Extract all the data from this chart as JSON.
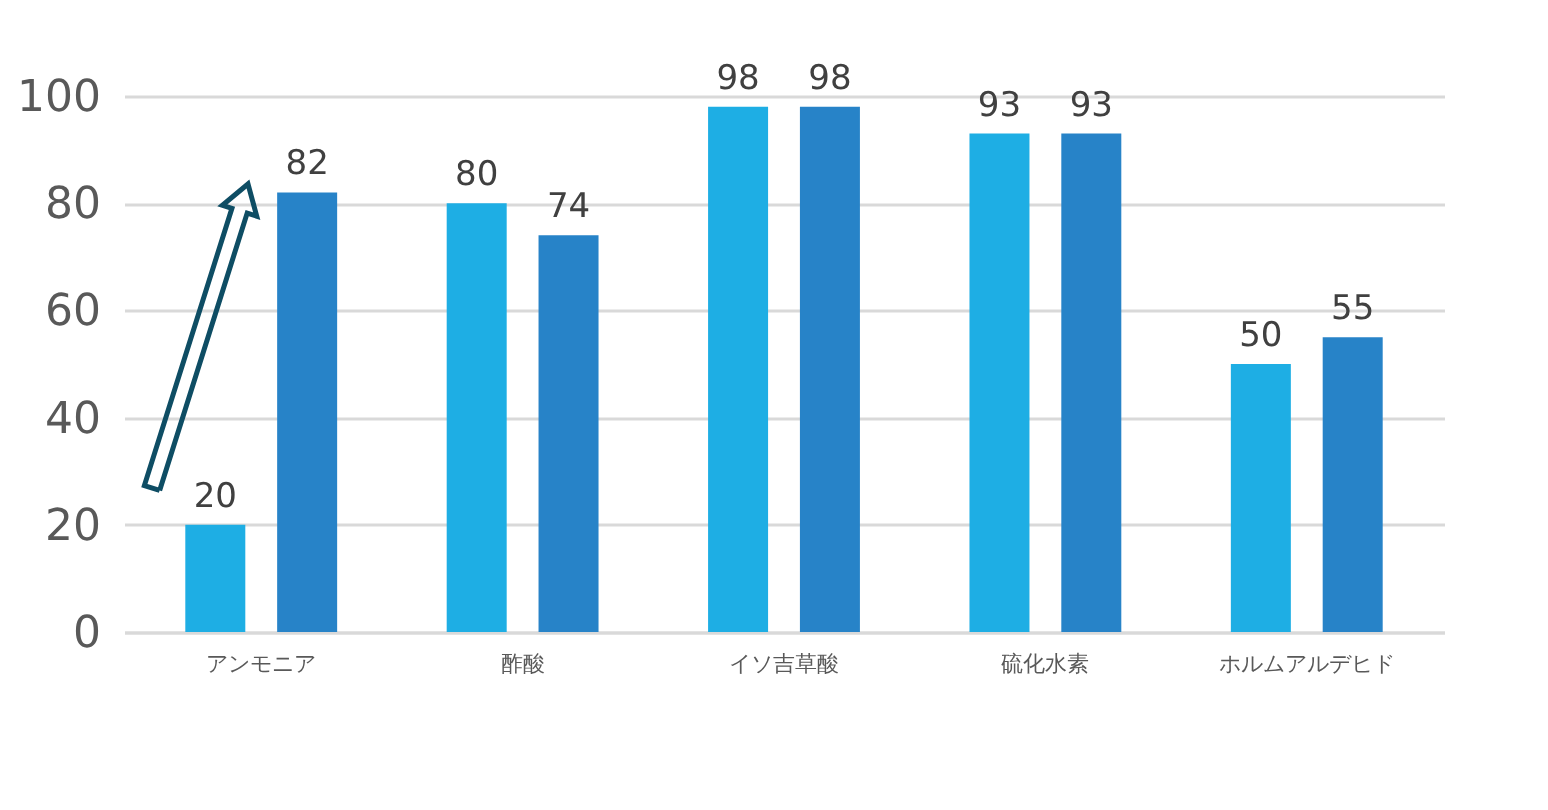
{
  "chart_data": {
    "type": "bar",
    "categories": [
      "アンモニア",
      "酢酸",
      "イソ吉草酸",
      "硫化水素",
      "ホルムアルデヒド"
    ],
    "series": [
      {
        "color": "#1eaee4",
        "values": [
          20,
          80,
          98,
          93,
          50
        ]
      },
      {
        "color": "#2783c8",
        "values": [
          82,
          74,
          98,
          93,
          55
        ]
      }
    ],
    "ylim": [
      0,
      100
    ],
    "yticks": [
      0,
      20,
      40,
      60,
      80,
      100
    ],
    "grid": "y",
    "data_labels": true,
    "legend": false
  }
}
